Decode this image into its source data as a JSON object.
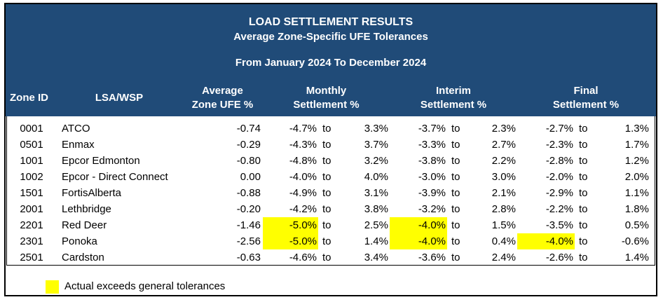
{
  "report": {
    "title": "LOAD SETTLEMENT RESULTS",
    "subtitle": "Average Zone-Specific UFE Tolerances",
    "period": "From January 2024 To December 2024"
  },
  "columns": {
    "zone_id": "Zone ID",
    "lsa_wsp": "LSA/WSP",
    "avg_line1": "Average",
    "avg_line2": "Zone UFE %",
    "monthly_line1": "Monthly",
    "monthly_line2": "Settlement %",
    "interim_line1": "Interim",
    "interim_line2": "Settlement %",
    "final_line1": "Final",
    "final_line2": "Settlement %"
  },
  "to_label": "to",
  "rows": [
    {
      "zone_id": "0001",
      "lsa": "ATCO",
      "avg": "-0.74",
      "m_low": "-4.7%",
      "m_high": "3.3%",
      "i_low": "-3.7%",
      "i_high": "2.3%",
      "f_low": "-2.7%",
      "f_high": "1.3%",
      "hl": []
    },
    {
      "zone_id": "0501",
      "lsa": "Enmax",
      "avg": "-0.29",
      "m_low": "-4.3%",
      "m_high": "3.7%",
      "i_low": "-3.3%",
      "i_high": "2.7%",
      "f_low": "-2.3%",
      "f_high": "1.7%",
      "hl": []
    },
    {
      "zone_id": "1001",
      "lsa": "Epcor Edmonton",
      "avg": "-0.80",
      "m_low": "-4.8%",
      "m_high": "3.2%",
      "i_low": "-3.8%",
      "i_high": "2.2%",
      "f_low": "-2.8%",
      "f_high": "1.2%",
      "hl": []
    },
    {
      "zone_id": "1002",
      "lsa": "Epcor - Direct Connect",
      "avg": "0.00",
      "m_low": "-4.0%",
      "m_high": "4.0%",
      "i_low": "-3.0%",
      "i_high": "3.0%",
      "f_low": "-2.0%",
      "f_high": "2.0%",
      "hl": []
    },
    {
      "zone_id": "1501",
      "lsa": "FortisAlberta",
      "avg": "-0.88",
      "m_low": "-4.9%",
      "m_high": "3.1%",
      "i_low": "-3.9%",
      "i_high": "2.1%",
      "f_low": "-2.9%",
      "f_high": "1.1%",
      "hl": []
    },
    {
      "zone_id": "2001",
      "lsa": "Lethbridge",
      "avg": "-0.20",
      "m_low": "-4.2%",
      "m_high": "3.8%",
      "i_low": "-3.2%",
      "i_high": "2.8%",
      "f_low": "-2.2%",
      "f_high": "1.8%",
      "hl": []
    },
    {
      "zone_id": "2201",
      "lsa": "Red Deer",
      "avg": "-1.46",
      "m_low": "-5.0%",
      "m_high": "2.5%",
      "i_low": "-4.0%",
      "i_high": "1.5%",
      "f_low": "-3.5%",
      "f_high": "0.5%",
      "hl": [
        "m_low",
        "i_low"
      ]
    },
    {
      "zone_id": "2301",
      "lsa": "Ponoka",
      "avg": "-2.56",
      "m_low": "-5.0%",
      "m_high": "1.4%",
      "i_low": "-4.0%",
      "i_high": "0.4%",
      "f_low": "-4.0%",
      "f_high": "-0.6%",
      "hl": [
        "m_low",
        "i_low",
        "f_low"
      ]
    },
    {
      "zone_id": "2501",
      "lsa": "Cardston",
      "avg": "-0.63",
      "m_low": "-4.6%",
      "m_high": "3.4%",
      "i_low": "-3.6%",
      "i_high": "2.4%",
      "f_low": "-2.6%",
      "f_high": "1.4%",
      "hl": []
    }
  ],
  "legend": {
    "label": "Actual exceeds general tolerances"
  },
  "colors": {
    "header_bg": "#204B78",
    "header_text": "#FFFFFF",
    "highlight": "#FFFF00",
    "border": "#000000"
  }
}
